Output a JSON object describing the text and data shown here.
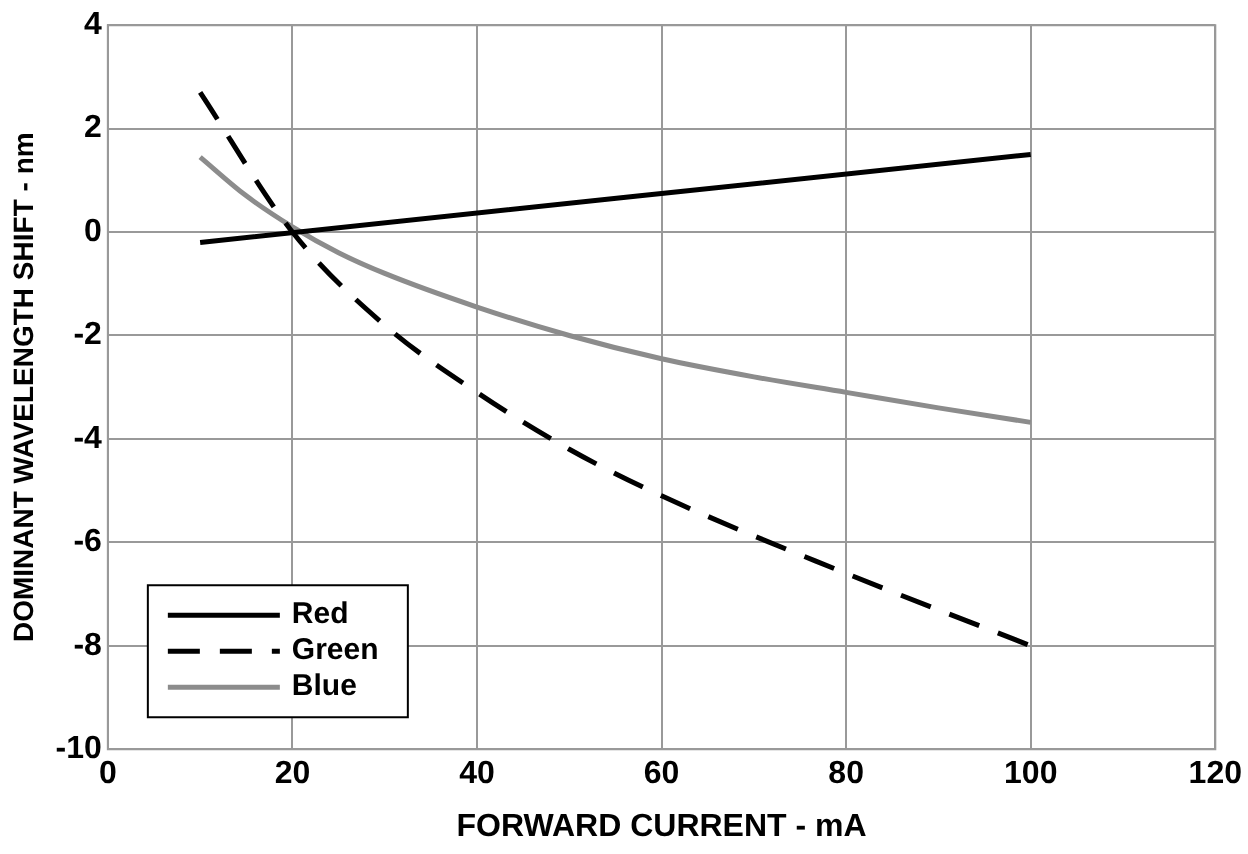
{
  "chart_data": {
    "type": "line",
    "xlabel": "FORWARD CURRENT - mA",
    "ylabel": "DOMINANT WAVELENGTH SHIFT - nm",
    "xlim": [
      0,
      120
    ],
    "xticks": [
      0,
      20,
      40,
      60,
      80,
      100,
      120
    ],
    "ylim": [
      -10,
      4
    ],
    "yticks": [
      -10,
      -8,
      -6,
      -4,
      -2,
      0,
      2,
      4
    ],
    "grid": true,
    "legend": "bottom left",
    "series": [
      {
        "name": "Red",
        "color": "#000000",
        "line_style": "solid",
        "x": [
          10,
          100
        ],
        "values": [
          -0.2,
          1.5
        ]
      },
      {
        "name": "Green",
        "color": "#000000",
        "line_style": "dashed",
        "x": [
          10,
          20,
          30,
          40,
          50,
          60,
          80,
          100
        ],
        "values": [
          2.7,
          0,
          -1.8,
          -3.1,
          -4.2,
          -5.1,
          -6.6,
          -8.0
        ]
      },
      {
        "name": "Blue",
        "color": "#8c8c8c",
        "line_style": "solid",
        "x": [
          10,
          15,
          20,
          25,
          30,
          40,
          50,
          60,
          70,
          80,
          90,
          100
        ],
        "values": [
          1.45,
          0.7,
          0.1,
          -0.4,
          -0.8,
          -1.45,
          -2.0,
          -2.45,
          -2.8,
          -3.1,
          -3.4,
          -3.68
        ]
      }
    ]
  }
}
